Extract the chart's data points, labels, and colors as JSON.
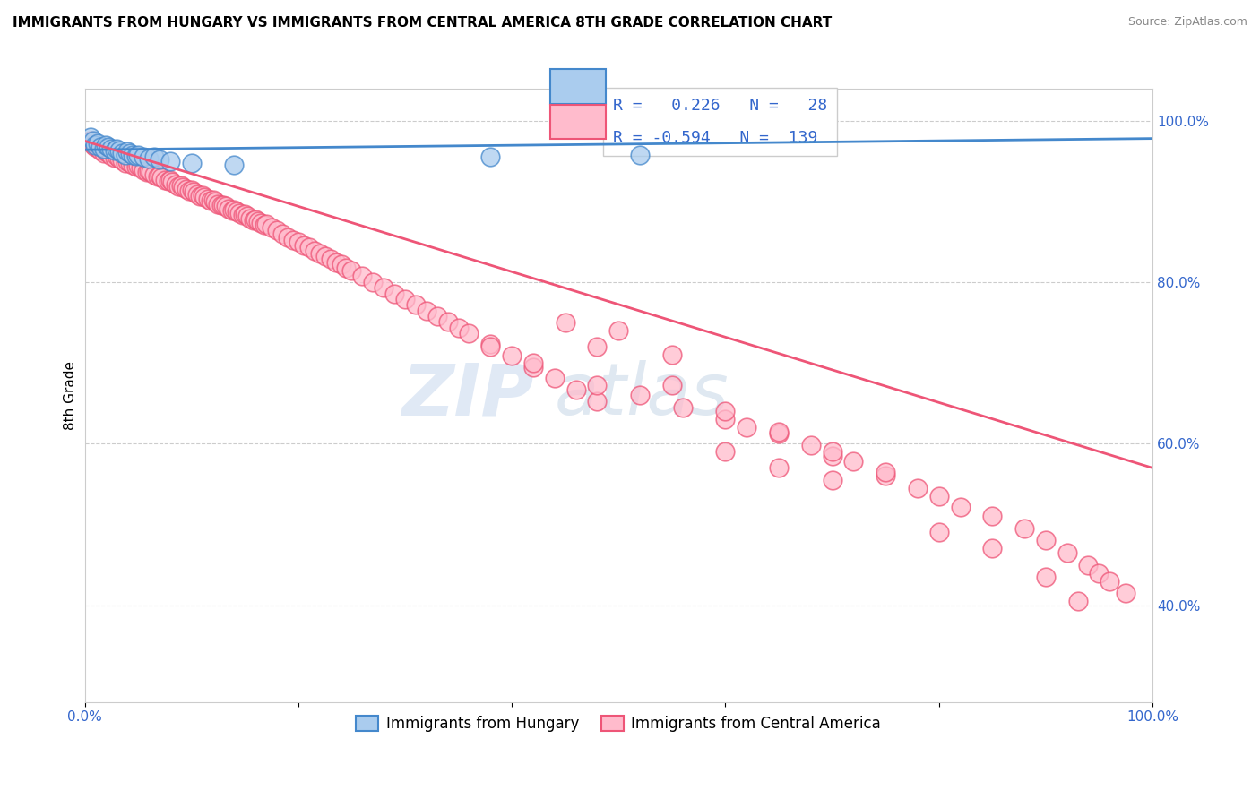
{
  "title": "IMMIGRANTS FROM HUNGARY VS IMMIGRANTS FROM CENTRAL AMERICA 8TH GRADE CORRELATION CHART",
  "source": "Source: ZipAtlas.com",
  "ylabel": "8th Grade",
  "legend_label1": "Immigrants from Hungary",
  "legend_label2": "Immigrants from Central America",
  "R1": 0.226,
  "N1": 28,
  "R2": -0.594,
  "N2": 139,
  "color_hungary": "#aaccee",
  "color_central": "#ffbbcc",
  "line_color_hungary": "#4488cc",
  "line_color_central": "#ee5577",
  "watermark_zip": "ZIP",
  "watermark_atlas": "atlas",
  "xlim": [
    0.0,
    1.0
  ],
  "ylim": [
    0.28,
    1.04
  ],
  "x_ticks": [
    0.0,
    0.2,
    0.4,
    0.6,
    0.8,
    1.0
  ],
  "x_tick_labels": [
    "0.0%",
    "",
    "",
    "",
    "",
    "100.0%"
  ],
  "y_ticks": [
    0.4,
    0.6,
    0.8,
    1.0
  ],
  "y_tick_labels_right": [
    "40.0%",
    "60.0%",
    "80.0%",
    "100.0%"
  ],
  "hungary_x": [
    0.005,
    0.008,
    0.01,
    0.012,
    0.015,
    0.018,
    0.02,
    0.022,
    0.025,
    0.028,
    0.03,
    0.032,
    0.035,
    0.038,
    0.04,
    0.042,
    0.045,
    0.048,
    0.05,
    0.055,
    0.06,
    0.065,
    0.07,
    0.08,
    0.1,
    0.14,
    0.38,
    0.52
  ],
  "hungary_y": [
    0.98,
    0.975,
    0.97,
    0.972,
    0.968,
    0.965,
    0.97,
    0.968,
    0.965,
    0.963,
    0.965,
    0.963,
    0.96,
    0.958,
    0.962,
    0.96,
    0.958,
    0.956,
    0.958,
    0.955,
    0.953,
    0.955,
    0.952,
    0.95,
    0.948,
    0.945,
    0.955,
    0.958
  ],
  "central_x": [
    0.005,
    0.008,
    0.01,
    0.012,
    0.015,
    0.018,
    0.02,
    0.022,
    0.025,
    0.028,
    0.03,
    0.032,
    0.035,
    0.038,
    0.04,
    0.042,
    0.045,
    0.048,
    0.05,
    0.052,
    0.055,
    0.058,
    0.06,
    0.062,
    0.065,
    0.068,
    0.07,
    0.072,
    0.075,
    0.078,
    0.08,
    0.082,
    0.085,
    0.088,
    0.09,
    0.092,
    0.095,
    0.098,
    0.1,
    0.102,
    0.105,
    0.108,
    0.11,
    0.112,
    0.115,
    0.118,
    0.12,
    0.122,
    0.125,
    0.128,
    0.13,
    0.132,
    0.135,
    0.138,
    0.14,
    0.142,
    0.145,
    0.148,
    0.15,
    0.152,
    0.155,
    0.158,
    0.16,
    0.162,
    0.165,
    0.168,
    0.17,
    0.175,
    0.18,
    0.185,
    0.19,
    0.195,
    0.2,
    0.205,
    0.21,
    0.215,
    0.22,
    0.225,
    0.23,
    0.235,
    0.24,
    0.245,
    0.25,
    0.26,
    0.27,
    0.28,
    0.29,
    0.3,
    0.31,
    0.32,
    0.33,
    0.34,
    0.35,
    0.36,
    0.38,
    0.4,
    0.42,
    0.44,
    0.46,
    0.48,
    0.38,
    0.42,
    0.48,
    0.52,
    0.56,
    0.6,
    0.62,
    0.65,
    0.68,
    0.7,
    0.72,
    0.75,
    0.78,
    0.8,
    0.82,
    0.85,
    0.88,
    0.9,
    0.92,
    0.94,
    0.95,
    0.96,
    0.975,
    0.6,
    0.65,
    0.7,
    0.8,
    0.55,
    0.5,
    0.48,
    0.45,
    0.55,
    0.6,
    0.65,
    0.7,
    0.75,
    0.85,
    0.9,
    0.93
  ],
  "central_y": [
    0.975,
    0.97,
    0.968,
    0.966,
    0.963,
    0.96,
    0.962,
    0.96,
    0.957,
    0.954,
    0.956,
    0.953,
    0.951,
    0.948,
    0.95,
    0.948,
    0.945,
    0.943,
    0.944,
    0.942,
    0.939,
    0.937,
    0.938,
    0.936,
    0.933,
    0.931,
    0.932,
    0.93,
    0.927,
    0.925,
    0.926,
    0.924,
    0.921,
    0.919,
    0.92,
    0.918,
    0.915,
    0.913,
    0.914,
    0.912,
    0.909,
    0.907,
    0.908,
    0.906,
    0.903,
    0.901,
    0.902,
    0.9,
    0.897,
    0.895,
    0.896,
    0.894,
    0.891,
    0.889,
    0.89,
    0.888,
    0.885,
    0.883,
    0.884,
    0.882,
    0.879,
    0.877,
    0.878,
    0.876,
    0.873,
    0.871,
    0.872,
    0.868,
    0.864,
    0.86,
    0.856,
    0.852,
    0.85,
    0.846,
    0.843,
    0.839,
    0.836,
    0.832,
    0.829,
    0.825,
    0.822,
    0.818,
    0.815,
    0.808,
    0.8,
    0.793,
    0.786,
    0.779,
    0.772,
    0.765,
    0.758,
    0.751,
    0.744,
    0.737,
    0.723,
    0.709,
    0.695,
    0.681,
    0.667,
    0.653,
    0.72,
    0.7,
    0.672,
    0.66,
    0.645,
    0.63,
    0.62,
    0.612,
    0.598,
    0.585,
    0.578,
    0.56,
    0.545,
    0.535,
    0.522,
    0.51,
    0.495,
    0.48,
    0.465,
    0.45,
    0.44,
    0.43,
    0.415,
    0.59,
    0.57,
    0.555,
    0.49,
    0.71,
    0.74,
    0.72,
    0.75,
    0.672,
    0.64,
    0.615,
    0.59,
    0.565,
    0.47,
    0.435,
    0.405
  ]
}
